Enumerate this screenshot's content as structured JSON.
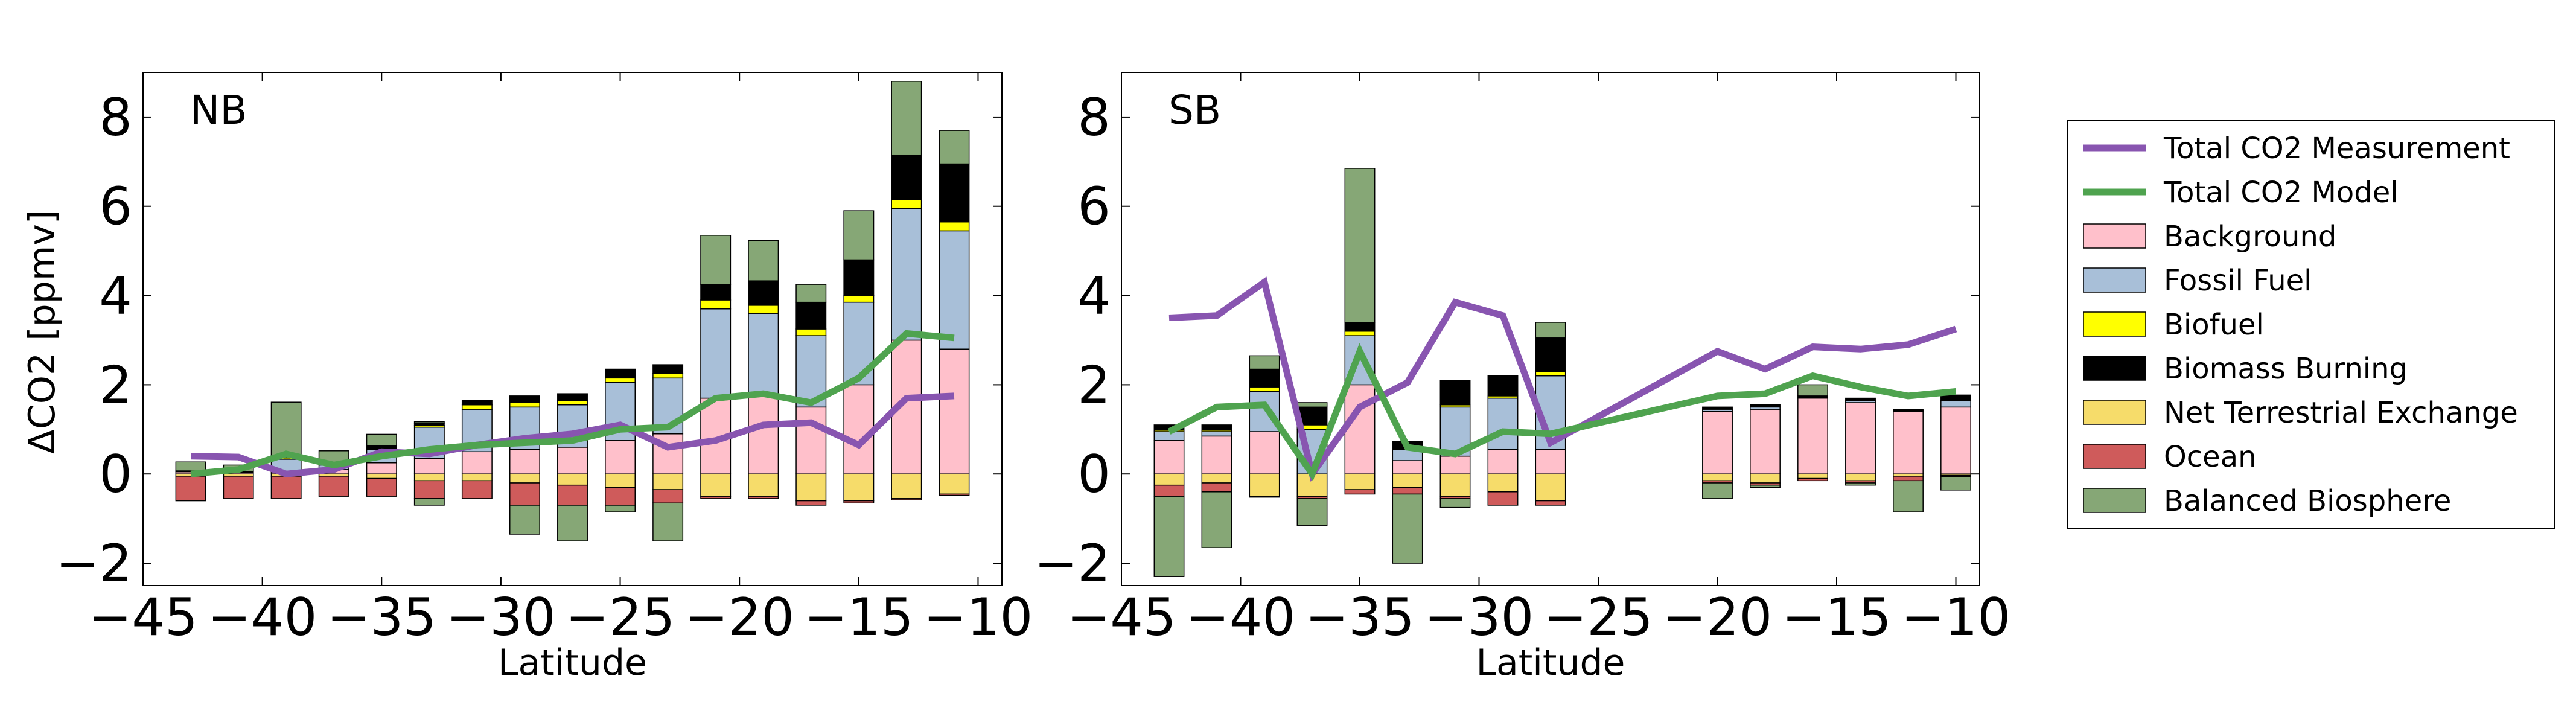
{
  "figure": {
    "ylabel": "ΔCO2 [ppmv]",
    "xlabel": "Latitude"
  },
  "legend": {
    "placement": "right",
    "entries": [
      {
        "label": "Total CO2 Measurement",
        "kind": "line",
        "color": "#8855b0"
      },
      {
        "label": "Total CO2 Model",
        "kind": "line",
        "color": "#4fa34f"
      },
      {
        "label": "Background",
        "kind": "patch",
        "color": "#ffc0cb"
      },
      {
        "label": "Fossil Fuel",
        "kind": "patch",
        "color": "#a8bfd8"
      },
      {
        "label": "Biofuel",
        "kind": "patch",
        "color": "#ffff00"
      },
      {
        "label": "Biomass Burning",
        "kind": "patch",
        "color": "#000000"
      },
      {
        "label": "Net Terrestrial Exchange",
        "kind": "patch",
        "color": "#f6dc6a"
      },
      {
        "label": "Ocean",
        "kind": "patch",
        "color": "#cf5b5b"
      },
      {
        "label": "Balanced Biosphere",
        "kind": "patch",
        "color": "#86a776"
      }
    ]
  },
  "chart_data": [
    {
      "type": "bar",
      "title": "NB",
      "xlabel": "Latitude",
      "ylabel": "ΔCO2 [ppmv]",
      "xlim": [
        -45,
        -9
      ],
      "ylim": [
        -2.5,
        9
      ],
      "xticks": [
        -45,
        -40,
        -35,
        -30,
        -25,
        -20,
        -15,
        -10
      ],
      "yticks": [
        -2,
        0,
        2,
        4,
        6,
        8
      ],
      "grid": false,
      "x": [
        -43,
        -41,
        -39,
        -37,
        -35,
        -33,
        -31,
        -29,
        -27,
        -25,
        -23,
        -21,
        -19,
        -17,
        -15,
        -13,
        -11
      ],
      "components": [
        {
          "name": "Background",
          "color": "#ffc0cb",
          "values": [
            0.05,
            0.03,
            0.03,
            0.1,
            0.25,
            0.35,
            0.5,
            0.55,
            0.6,
            0.75,
            0.9,
            1.7,
            1.8,
            1.5,
            2.0,
            3.0,
            2.8
          ]
        },
        {
          "name": "Fossil Fuel",
          "color": "#a8bfd8",
          "values": [
            0.02,
            0.02,
            0.3,
            0.1,
            0.3,
            0.7,
            0.95,
            0.95,
            0.95,
            1.3,
            1.25,
            2.0,
            1.8,
            1.6,
            1.85,
            2.95,
            2.65
          ]
        },
        {
          "name": "Biofuel",
          "color": "#ffff00",
          "values": [
            0.0,
            0.0,
            0.03,
            0.01,
            0.03,
            0.04,
            0.1,
            0.1,
            0.1,
            0.1,
            0.1,
            0.2,
            0.18,
            0.15,
            0.15,
            0.2,
            0.2
          ]
        },
        {
          "name": "Biomass Burning",
          "color": "#000000",
          "values": [
            0.0,
            0.0,
            0.05,
            0.01,
            0.06,
            0.05,
            0.1,
            0.15,
            0.15,
            0.2,
            0.2,
            0.35,
            0.55,
            0.6,
            0.8,
            1.0,
            1.3
          ]
        },
        {
          "name": "Balanced Biosphere",
          "color": "#86a776",
          "values": [
            0.2,
            0.15,
            1.2,
            0.3,
            0.25,
            0.03,
            0.0,
            0.0,
            0.0,
            0.0,
            0.0,
            1.1,
            0.9,
            0.4,
            1.1,
            1.65,
            0.75
          ]
        },
        {
          "name": "Net Terrestrial Exchange",
          "color": "#f6dc6a",
          "values": [
            -0.05,
            -0.05,
            -0.05,
            -0.05,
            -0.1,
            -0.15,
            -0.15,
            -0.2,
            -0.25,
            -0.3,
            -0.35,
            -0.5,
            -0.5,
            -0.6,
            -0.6,
            -0.55,
            -0.45
          ]
        },
        {
          "name": "Ocean",
          "color": "#cf5b5b",
          "values": [
            -0.55,
            -0.5,
            -0.5,
            -0.45,
            -0.4,
            -0.4,
            -0.4,
            -0.5,
            -0.45,
            -0.4,
            -0.3,
            -0.05,
            -0.05,
            -0.1,
            -0.05,
            -0.03,
            -0.03
          ]
        },
        {
          "name": "Balanced Biosphere",
          "color": "#86a776",
          "values": [
            0.0,
            0.0,
            0.0,
            0.0,
            0.0,
            -0.15,
            0.0,
            -0.65,
            -0.8,
            -0.15,
            -0.85,
            0.0,
            0.0,
            0.0,
            0.0,
            0.0,
            0.0
          ]
        }
      ],
      "series": [
        {
          "name": "Total CO2 Measurement",
          "color": "#8855b0",
          "values": [
            0.4,
            0.38,
            0.0,
            0.1,
            0.5,
            0.45,
            0.65,
            0.8,
            0.9,
            1.1,
            0.6,
            0.75,
            1.1,
            1.15,
            0.65,
            1.7,
            1.75
          ]
        },
        {
          "name": "Total CO2 Model",
          "color": "#4fa34f",
          "values": [
            0.0,
            0.1,
            0.45,
            0.2,
            0.4,
            0.55,
            0.65,
            0.7,
            0.75,
            1.0,
            1.05,
            1.7,
            1.8,
            1.6,
            2.15,
            3.15,
            3.05
          ]
        }
      ]
    },
    {
      "type": "bar",
      "title": "SB",
      "xlabel": "Latitude",
      "ylabel": "",
      "xlim": [
        -45,
        -9
      ],
      "ylim": [
        -2.5,
        9
      ],
      "xticks": [
        -45,
        -40,
        -35,
        -30,
        -25,
        -20,
        -15,
        -10
      ],
      "yticks": [
        -2,
        0,
        2,
        4,
        6,
        8
      ],
      "grid": false,
      "x": [
        -43,
        -41,
        -39,
        -37,
        -35,
        -33,
        -31,
        -29,
        -27,
        -20,
        -18,
        -16,
        -14,
        -12,
        -10
      ],
      "components": [
        {
          "name": "Background",
          "color": "#ffc0cb",
          "values": [
            0.75,
            0.85,
            0.95,
            0.0,
            2.0,
            0.3,
            0.4,
            0.55,
            0.55,
            1.4,
            1.45,
            1.7,
            1.6,
            1.4,
            1.5
          ]
        },
        {
          "name": "Fossil Fuel",
          "color": "#a8bfd8",
          "values": [
            0.2,
            0.1,
            0.9,
            1.0,
            1.1,
            0.25,
            1.1,
            1.15,
            1.65,
            0.05,
            0.05,
            0.02,
            0.05,
            0.02,
            0.15
          ]
        },
        {
          "name": "Biofuel",
          "color": "#ffff00",
          "values": [
            0.03,
            0.03,
            0.1,
            0.1,
            0.1,
            0.03,
            0.05,
            0.05,
            0.1,
            0.0,
            0.0,
            0.0,
            0.0,
            0.0,
            0.0
          ]
        },
        {
          "name": "Biomass Burning",
          "color": "#000000",
          "values": [
            0.12,
            0.12,
            0.4,
            0.4,
            0.2,
            0.15,
            0.55,
            0.45,
            0.75,
            0.05,
            0.05,
            0.03,
            0.05,
            0.03,
            0.12
          ]
        },
        {
          "name": "Balanced Biosphere",
          "color": "#86a776",
          "values": [
            0.0,
            0.0,
            0.3,
            0.1,
            3.45,
            0.0,
            0.0,
            0.0,
            0.35,
            0.0,
            0.0,
            0.25,
            0.0,
            0.0,
            0.0
          ]
        },
        {
          "name": "Net Terrestrial Exchange",
          "color": "#f6dc6a",
          "values": [
            -0.25,
            -0.2,
            -0.5,
            -0.5,
            -0.35,
            -0.3,
            -0.5,
            -0.4,
            -0.6,
            -0.15,
            -0.2,
            -0.1,
            -0.15,
            -0.05,
            -0.03
          ]
        },
        {
          "name": "Ocean",
          "color": "#cf5b5b",
          "values": [
            -0.25,
            -0.2,
            -0.02,
            -0.05,
            -0.1,
            -0.15,
            -0.05,
            -0.3,
            -0.1,
            -0.05,
            -0.05,
            -0.05,
            -0.05,
            -0.1,
            -0.03
          ]
        },
        {
          "name": "Balanced Biosphere",
          "color": "#86a776",
          "values": [
            -1.8,
            -1.25,
            0.0,
            -0.6,
            0.0,
            -1.55,
            -0.2,
            0.0,
            0.0,
            -0.35,
            -0.05,
            0.0,
            -0.05,
            -0.7,
            -0.3
          ]
        }
      ],
      "series": [
        {
          "name": "Total CO2 Measurement",
          "color": "#8855b0",
          "x": [
            -43,
            -41,
            -39,
            -37,
            -35,
            -33,
            -31,
            -29,
            -27,
            -20,
            -18,
            -16,
            -14,
            -12,
            -10
          ],
          "values": [
            3.5,
            3.55,
            4.3,
            0.0,
            1.5,
            2.05,
            3.85,
            3.55,
            0.7,
            2.75,
            2.35,
            2.85,
            2.8,
            2.9,
            3.25
          ]
        },
        {
          "name": "Total CO2 Model",
          "color": "#4fa34f",
          "x": [
            -43,
            -41,
            -39,
            -37,
            -35,
            -33,
            -31,
            -29,
            -27,
            -20,
            -18,
            -16,
            -14,
            -12,
            -10
          ],
          "values": [
            0.95,
            1.5,
            1.55,
            0.0,
            2.75,
            0.6,
            0.45,
            0.95,
            0.9,
            1.75,
            1.8,
            2.2,
            1.95,
            1.75,
            1.85
          ]
        }
      ]
    }
  ]
}
